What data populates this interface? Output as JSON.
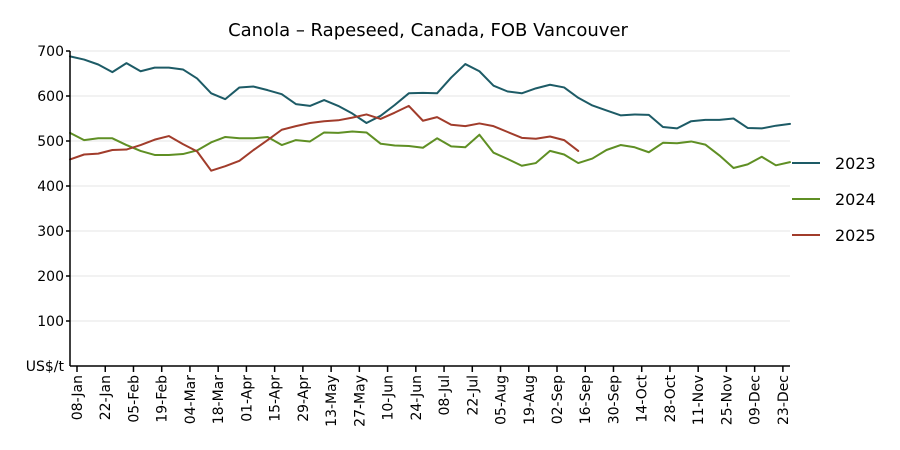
{
  "chart_data": {
    "type": "line",
    "title": "Canola – Rapeseed, Canada, FOB Vancouver",
    "ylabel": "US$/t",
    "xlabel": "",
    "ylim": [
      0,
      700
    ],
    "yticks": [
      100,
      200,
      300,
      400,
      500,
      600,
      700
    ],
    "grid": true,
    "legend_position": "right",
    "x_tick_labels": [
      "08-Jan",
      "22-Jan",
      "05-Feb",
      "19-Feb",
      "04-Mar",
      "18-Mar",
      "01-Apr",
      "15-Apr",
      "29-Apr",
      "13-May",
      "27-May",
      "10-Jun",
      "24-Jun",
      "08-Jul",
      "22-Jul",
      "05-Aug",
      "19-Aug",
      "02-Sep",
      "16-Sep",
      "30-Sep",
      "14-Oct",
      "28-Oct",
      "11-Nov",
      "25-Nov",
      "09-Dec",
      "23-Dec"
    ],
    "series": [
      {
        "name": "2023",
        "color": "#1d5b66",
        "values": [
          688,
          681,
          670,
          653,
          673,
          655,
          663,
          663,
          659,
          639,
          606,
          593,
          619,
          621,
          613,
          604,
          582,
          578,
          591,
          578,
          561,
          540,
          556,
          580,
          606,
          607,
          606,
          641,
          671,
          655,
          623,
          610,
          606,
          617,
          625,
          619,
          596,
          579,
          568,
          557,
          559,
          558,
          531,
          528,
          544,
          547,
          547,
          550,
          529,
          528,
          534,
          538
        ]
      },
      {
        "name": "2024",
        "color": "#5f8f24",
        "values": [
          518,
          502,
          506,
          506,
          491,
          478,
          469,
          469,
          471,
          479,
          497,
          509,
          506,
          506,
          509,
          491,
          502,
          499,
          519,
          518,
          521,
          519,
          494,
          490,
          489,
          485,
          506,
          488,
          486,
          514,
          474,
          460,
          445,
          451,
          478,
          470,
          451,
          461,
          480,
          491,
          486,
          475,
          496,
          495,
          499,
          492,
          468,
          440,
          448,
          465,
          446,
          453
        ]
      },
      {
        "name": "2025",
        "color": "#a13c2b",
        "values": [
          459,
          470,
          472,
          480,
          481,
          491,
          503,
          511,
          493,
          477,
          434,
          444,
          456,
          480,
          502,
          525,
          533,
          540,
          544,
          546,
          552,
          559,
          549,
          563,
          578,
          545,
          553,
          536,
          533,
          539,
          533,
          520,
          507,
          505,
          510,
          502,
          478
        ]
      }
    ]
  }
}
